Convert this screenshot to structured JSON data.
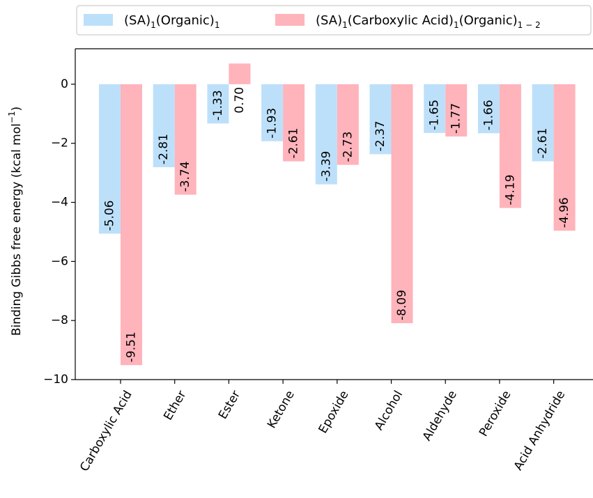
{
  "chart_data": {
    "type": "bar",
    "title": "",
    "xlabel": "",
    "ylabel": "Binding Gibbs free energy (kcal mol",
    "ylabel_sup": "−1",
    "ylabel_end": ")",
    "ylim": [
      -10,
      1.2
    ],
    "yticks": [
      0,
      -2,
      -4,
      -6,
      -8,
      -10
    ],
    "ytick_labels": [
      "0",
      "−2",
      "−4",
      "−6",
      "−8",
      "−10"
    ],
    "grid": false,
    "legend_position": "top",
    "categories": [
      "Carboxylic Acid",
      "Ether",
      "Ester",
      "Ketone",
      "Epoxide",
      "Alcohol",
      "Aldehyde",
      "Peroxide",
      "Acid Anhydride"
    ],
    "series": [
      {
        "legend_base": "(SA)",
        "legend_parts": [
          {
            "text": "(SA)",
            "sub": "1"
          },
          {
            "text": "(Organic)",
            "sub": "1"
          }
        ],
        "color": "#bde0fa",
        "values": [
          -5.06,
          -2.81,
          -1.33,
          -1.93,
          -3.39,
          -2.37,
          -1.65,
          -1.66,
          -2.61
        ],
        "labels": [
          "-5.06",
          "-2.81",
          "-1.33",
          "-1.93",
          "-3.39",
          "-2.37",
          "-1.65",
          "-1.66",
          "-2.61"
        ]
      },
      {
        "legend_parts": [
          {
            "text": "(SA)",
            "sub": "1"
          },
          {
            "text": "(Carboxylic Acid)",
            "sub": "1"
          },
          {
            "text": "(Organic)",
            "sub": "1 − 2"
          }
        ],
        "color": "#ffb3bb",
        "values": [
          -9.51,
          -3.74,
          0.7,
          -2.61,
          -2.73,
          -8.09,
          -1.77,
          -4.19,
          -4.96
        ],
        "labels": [
          "-9.51",
          "-3.74",
          "0.70",
          "-2.61",
          "-2.73",
          "-8.09",
          "-1.77",
          "-4.19",
          "-4.96"
        ]
      }
    ]
  }
}
